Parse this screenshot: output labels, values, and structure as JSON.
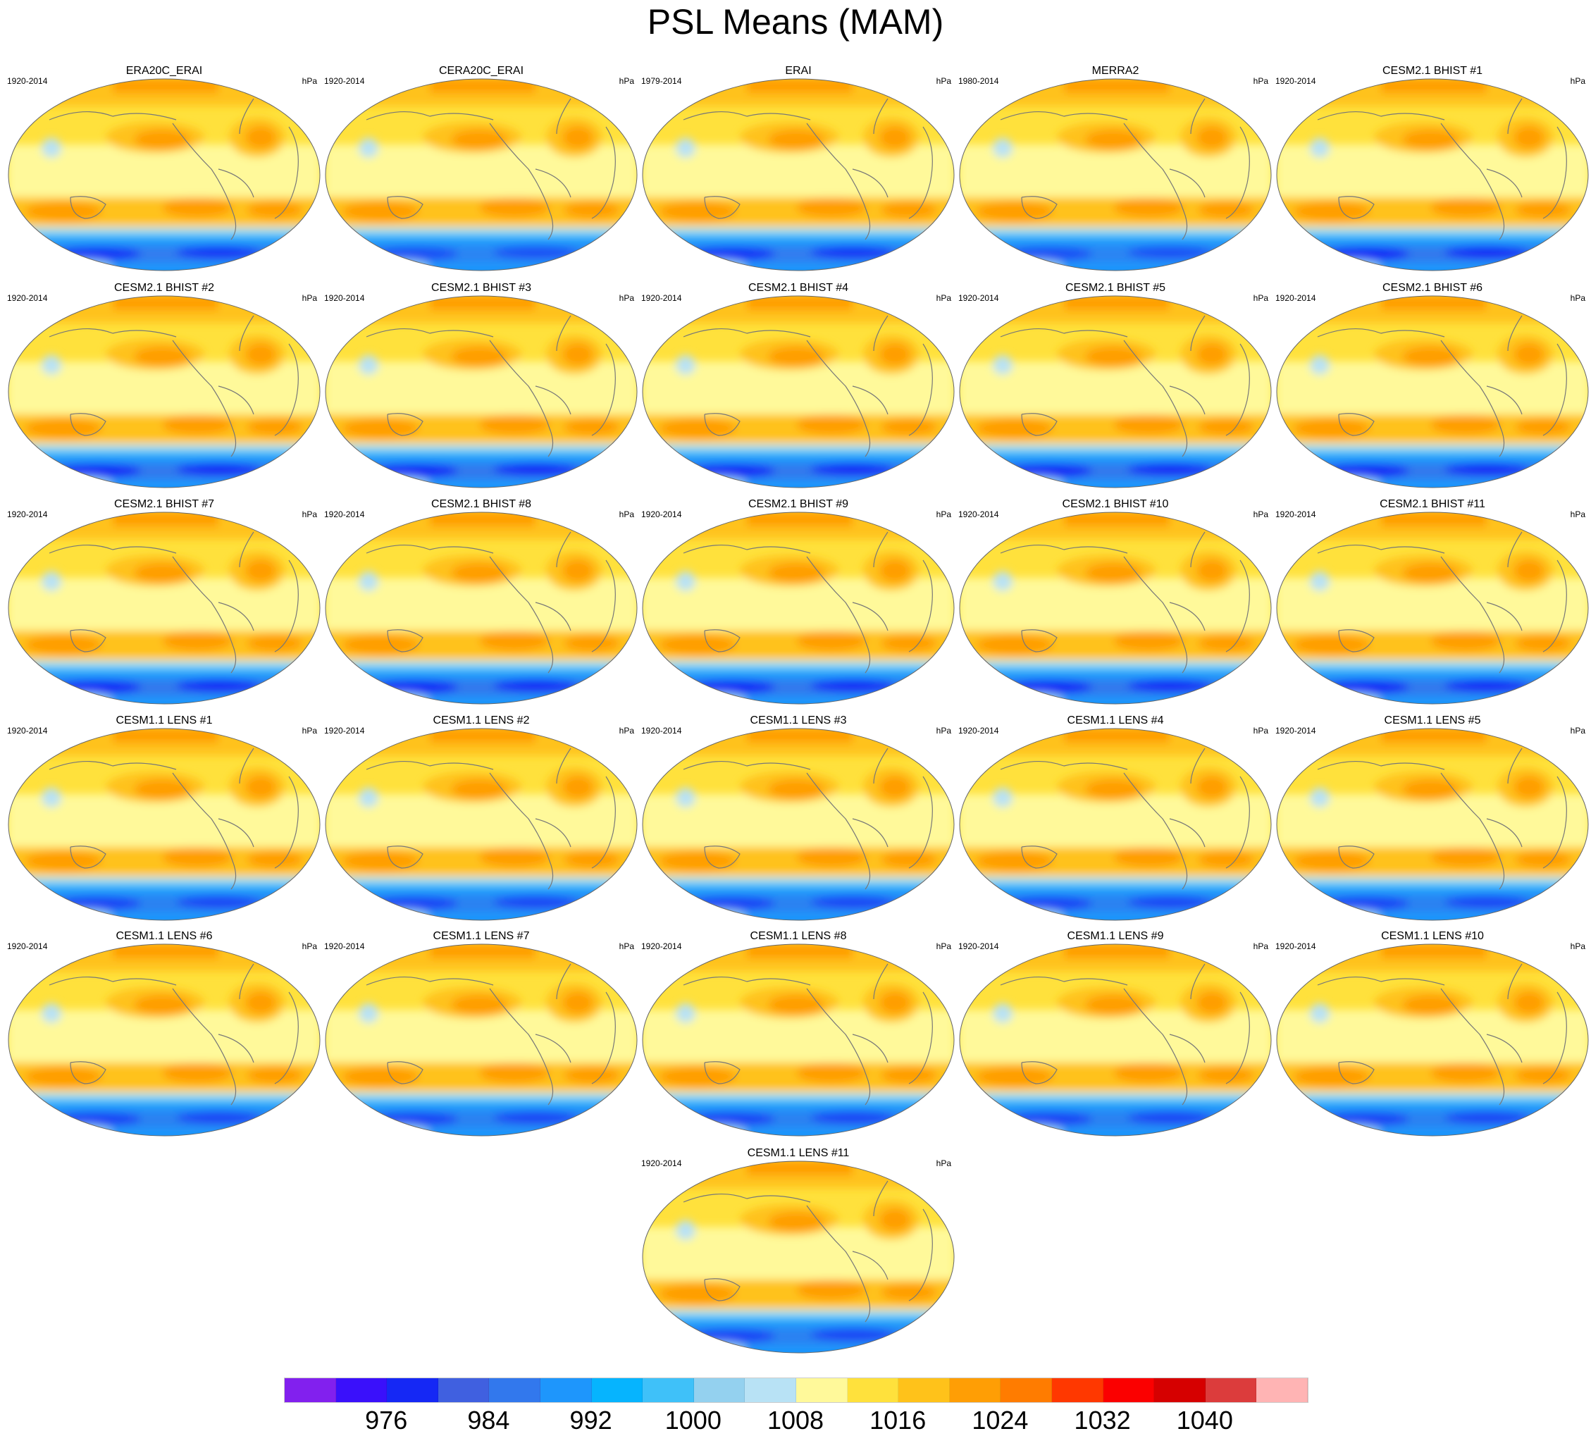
{
  "chart_data": {
    "type": "heatmap",
    "title": "PSL Means (MAM)",
    "units": "hPa",
    "colorbar": {
      "colors": [
        "#8220ee",
        "#3a10fb",
        "#1528f5",
        "#4060e0",
        "#3278ed",
        "#1e96fc",
        "#06b4fe",
        "#3fc1f9",
        "#94d1ef",
        "#b8e2f5",
        "#fff99a",
        "#ffe13c",
        "#ffc21a",
        "#ff9e05",
        "#ff7c00",
        "#ff3800",
        "#fb0000",
        "#d60000",
        "#dc3c3c",
        "#ffb4b4"
      ],
      "boundaries": [
        972,
        976,
        980,
        984,
        988,
        992,
        996,
        1000,
        1004,
        1008,
        1012,
        1016,
        1020,
        1024,
        1028,
        1032,
        1036,
        1040,
        1044
      ],
      "tick_labels": [
        "976",
        "984",
        "992",
        "1000",
        "1008",
        "1016",
        "1024",
        "1032",
        "1040"
      ]
    },
    "panels": [
      {
        "title": "ERA20C_ERAI",
        "years": "1920-2014",
        "units": "hPa"
      },
      {
        "title": "CERA20C_ERAI",
        "years": "1920-2014",
        "units": "hPa"
      },
      {
        "title": "ERAI",
        "years": "1979-2014",
        "units": "hPa"
      },
      {
        "title": "MERRA2",
        "years": "1980-2014",
        "units": "hPa"
      },
      {
        "title": "CESM2.1 BHIST #1",
        "years": "1920-2014",
        "units": "hPa"
      },
      {
        "title": "CESM2.1 BHIST #2",
        "years": "1920-2014",
        "units": "hPa"
      },
      {
        "title": "CESM2.1 BHIST #3",
        "years": "1920-2014",
        "units": "hPa"
      },
      {
        "title": "CESM2.1 BHIST #4",
        "years": "1920-2014",
        "units": "hPa"
      },
      {
        "title": "CESM2.1 BHIST #5",
        "years": "1920-2014",
        "units": "hPa"
      },
      {
        "title": "CESM2.1 BHIST #6",
        "years": "1920-2014",
        "units": "hPa"
      },
      {
        "title": "CESM2.1 BHIST #7",
        "years": "1920-2014",
        "units": "hPa"
      },
      {
        "title": "CESM2.1 BHIST #8",
        "years": "1920-2014",
        "units": "hPa"
      },
      {
        "title": "CESM2.1 BHIST #9",
        "years": "1920-2014",
        "units": "hPa"
      },
      {
        "title": "CESM2.1 BHIST #10",
        "years": "1920-2014",
        "units": "hPa"
      },
      {
        "title": "CESM2.1 BHIST #11",
        "years": "1920-2014",
        "units": "hPa"
      },
      {
        "title": "CESM1.1 LENS #1",
        "years": "1920-2014",
        "units": "hPa"
      },
      {
        "title": "CESM1.1 LENS #2",
        "years": "1920-2014",
        "units": "hPa"
      },
      {
        "title": "CESM1.1 LENS #3",
        "years": "1920-2014",
        "units": "hPa"
      },
      {
        "title": "CESM1.1 LENS #4",
        "years": "1920-2014",
        "units": "hPa"
      },
      {
        "title": "CESM1.1 LENS #5",
        "years": "1920-2014",
        "units": "hPa"
      },
      {
        "title": "CESM1.1 LENS #6",
        "years": "1920-2014",
        "units": "hPa"
      },
      {
        "title": "CESM1.1 LENS #7",
        "years": "1920-2014",
        "units": "hPa"
      },
      {
        "title": "CESM1.1 LENS #8",
        "years": "1920-2014",
        "units": "hPa"
      },
      {
        "title": "CESM1.1 LENS #9",
        "years": "1920-2014",
        "units": "hPa"
      },
      {
        "title": "CESM1.1 LENS #10",
        "years": "1920-2014",
        "units": "hPa"
      },
      {
        "title": "CESM1.1 LENS #11",
        "years": "1920-2014",
        "units": "hPa"
      }
    ]
  }
}
